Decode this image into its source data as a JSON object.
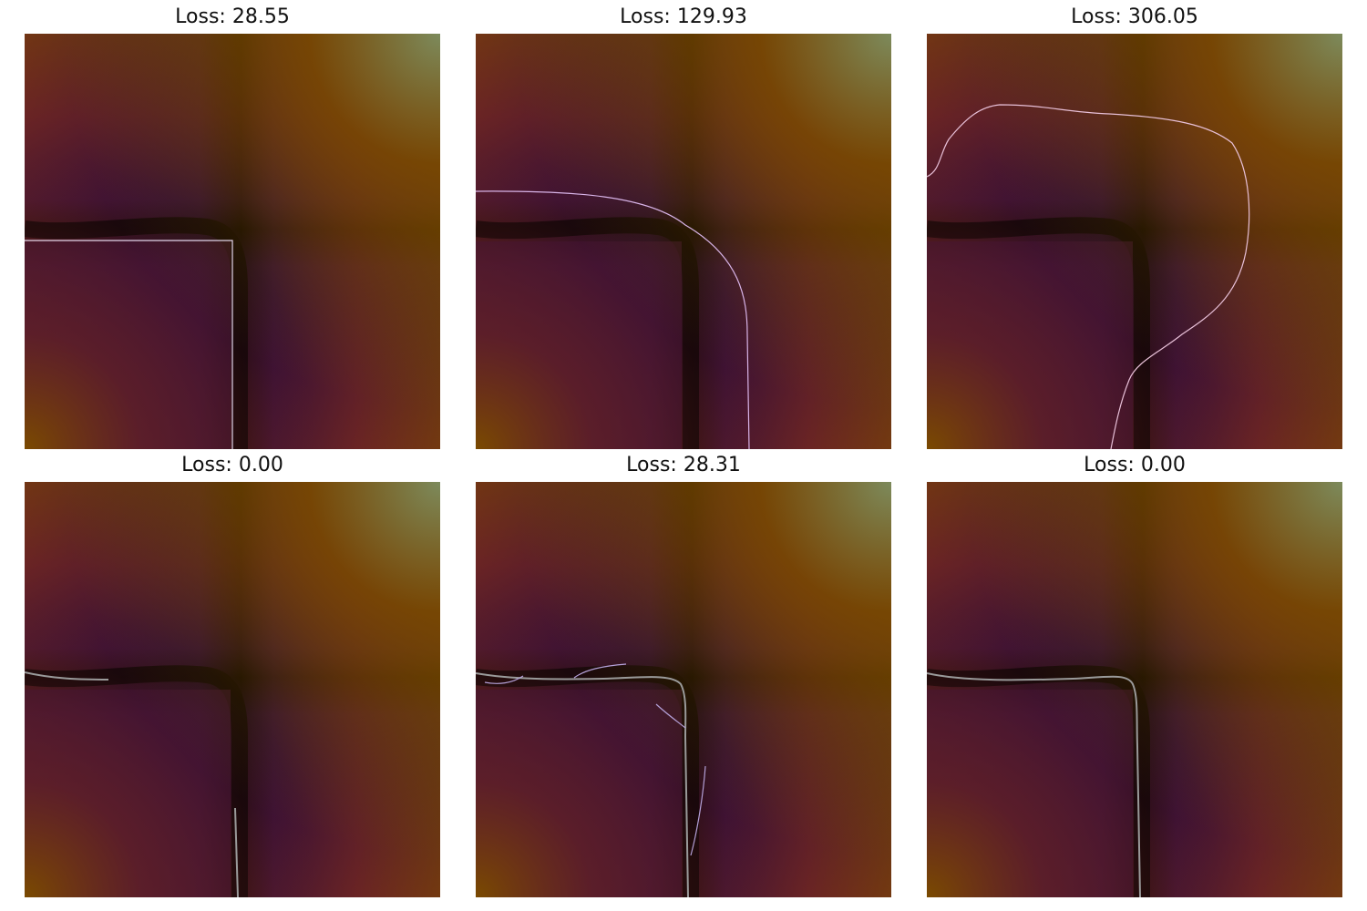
{
  "panels": [
    {
      "title": "Loss: 28.55",
      "contour": "square"
    },
    {
      "title": "Loss: 129.93",
      "contour": "rounded"
    },
    {
      "title": "Loss: 306.05",
      "contour": "blob"
    },
    {
      "title": "Loss: 0.00",
      "contour": "partial"
    },
    {
      "title": "Loss: 28.31",
      "contour": "fragmented"
    },
    {
      "title": "Loss: 0.00",
      "contour": "full"
    }
  ],
  "colors": {
    "field_dark": "#000000",
    "field_violet": "#2a0a3a",
    "field_red": "#6a2424",
    "field_orange": "#7a4a00",
    "field_corner": "#7c8a5c",
    "contour_light": "#d8b4e8",
    "contour_gray": "#9a9a9a"
  }
}
